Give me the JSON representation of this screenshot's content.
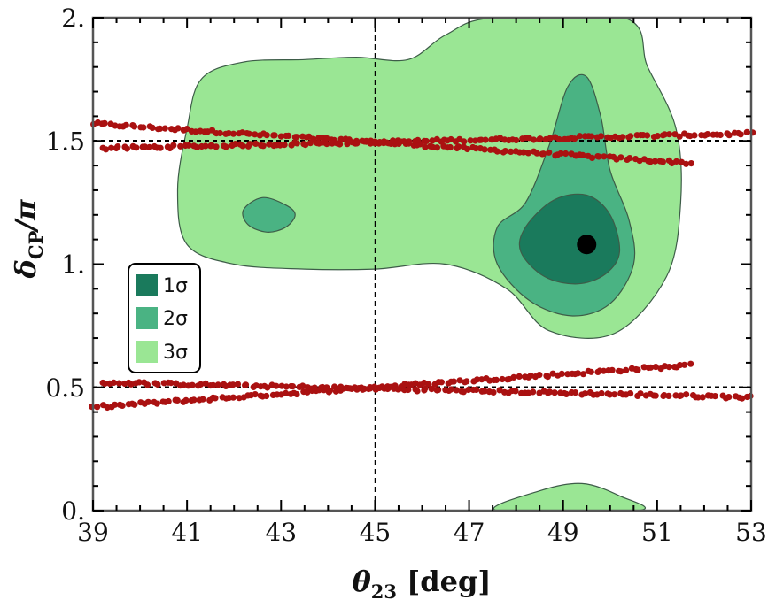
{
  "chart_data": {
    "type": "contour",
    "title": "",
    "xlabel": {
      "main": "θ",
      "sub": "23",
      "suffix": " [deg]"
    },
    "ylabel": {
      "main": "δ",
      "sub": "CP",
      "suffix": "/π"
    },
    "xlim": [
      39,
      53
    ],
    "ylim": [
      0,
      2
    ],
    "xticks": [
      39,
      41,
      43,
      45,
      47,
      49,
      51,
      53
    ],
    "xtick_labels": [
      "39",
      "41",
      "43",
      "45",
      "47",
      "49",
      "51",
      "53"
    ],
    "yticks": [
      0,
      0.5,
      1,
      1.5,
      2
    ],
    "ytick_labels": [
      "0.",
      "0.5",
      "1.",
      "1.5",
      "2."
    ],
    "colors": {
      "sigma1": "#1a7a5c",
      "sigma2": "#4ab383",
      "sigma3": "#9ae694",
      "points": "#aa1111",
      "best_fit": "#000000"
    },
    "legend": {
      "position": "middle-left",
      "entries": [
        {
          "key": "sigma1",
          "label": "1σ"
        },
        {
          "key": "sigma2",
          "label": "2σ"
        },
        {
          "key": "sigma3",
          "label": "3σ"
        }
      ]
    },
    "contours": {
      "sigma3": [
        [
          [
            44.6,
            1.84
          ],
          [
            45.7,
            1.83
          ],
          [
            46.5,
            1.93
          ],
          [
            47.5,
            2.0
          ],
          [
            50.3,
            2.0
          ],
          [
            50.8,
            1.8
          ],
          [
            51.4,
            1.55
          ],
          [
            51.5,
            1.25
          ],
          [
            51.2,
            0.95
          ],
          [
            50.1,
            0.72
          ],
          [
            48.7,
            0.73
          ],
          [
            47.8,
            0.9
          ],
          [
            46.5,
            1.0
          ],
          [
            45.0,
            0.98
          ],
          [
            43.5,
            0.98
          ],
          [
            42.0,
            1.0
          ],
          [
            41.0,
            1.08
          ],
          [
            40.8,
            1.3
          ],
          [
            41.0,
            1.55
          ],
          [
            41.3,
            1.75
          ],
          [
            42.2,
            1.82
          ],
          [
            43.5,
            1.83
          ]
        ],
        [
          [
            47.6,
            0.0
          ],
          [
            48.5,
            0.08
          ],
          [
            49.4,
            0.11
          ],
          [
            50.2,
            0.06
          ],
          [
            50.6,
            0.0
          ]
        ]
      ],
      "sigma2": [
        [
          [
            48.2,
            1.25
          ],
          [
            48.7,
            1.48
          ],
          [
            49.1,
            1.72
          ],
          [
            49.5,
            1.76
          ],
          [
            49.8,
            1.6
          ],
          [
            50.0,
            1.38
          ],
          [
            50.4,
            1.18
          ],
          [
            50.5,
            1.0
          ],
          [
            50.0,
            0.84
          ],
          [
            49.2,
            0.79
          ],
          [
            48.3,
            0.85
          ],
          [
            47.6,
            1.0
          ],
          [
            47.6,
            1.15
          ]
        ],
        [
          [
            42.2,
            1.22
          ],
          [
            42.6,
            1.27
          ],
          [
            43.1,
            1.24
          ],
          [
            43.3,
            1.2
          ],
          [
            43.1,
            1.15
          ],
          [
            42.7,
            1.13
          ],
          [
            42.3,
            1.16
          ]
        ]
      ],
      "sigma1": [
        [
          [
            48.2,
            1.15
          ],
          [
            48.8,
            1.26
          ],
          [
            49.5,
            1.28
          ],
          [
            50.0,
            1.2
          ],
          [
            50.2,
            1.05
          ],
          [
            49.9,
            0.96
          ],
          [
            49.3,
            0.92
          ],
          [
            48.6,
            0.95
          ],
          [
            48.1,
            1.05
          ]
        ]
      ]
    },
    "best_fit": {
      "x": 49.5,
      "y": 1.08
    },
    "reference_lines": {
      "horizontal": [
        0.5,
        1.5
      ],
      "vertical": [
        45
      ]
    },
    "scatter_bands": [
      {
        "name": "band1",
        "x": [
          39.0,
          51.7
        ],
        "y": [
          1.57,
          1.41
        ]
      },
      {
        "name": "band2",
        "x": [
          39.2,
          53.0
        ],
        "y": [
          1.47,
          1.53
        ]
      },
      {
        "name": "band3",
        "x": [
          39.0,
          51.7
        ],
        "y": [
          0.42,
          0.59
        ]
      },
      {
        "name": "band4",
        "x": [
          39.2,
          53.0
        ],
        "y": [
          0.52,
          0.46
        ]
      }
    ]
  }
}
